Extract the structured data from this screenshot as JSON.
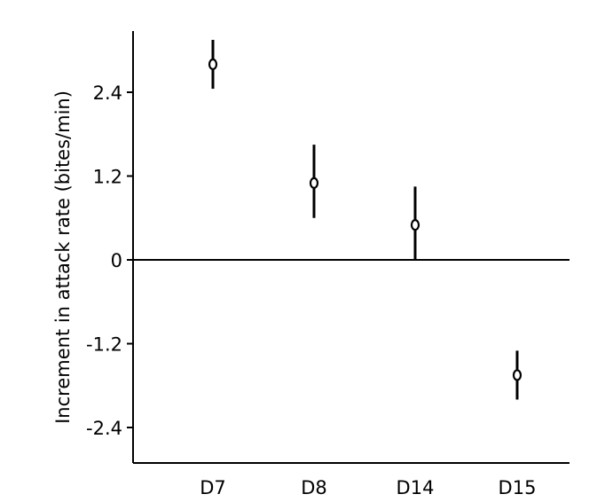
{
  "chart_data": {
    "type": "scatter",
    "title": "",
    "xlabel": "",
    "ylabel": "Increment in attack rate (bites/min)",
    "categories": [
      "D7",
      "D8",
      "D14",
      "D15"
    ],
    "values": [
      2.8,
      1.1,
      0.5,
      -1.65
    ],
    "error_low": [
      2.45,
      0.6,
      0.0,
      -2.0
    ],
    "error_high": [
      3.15,
      1.65,
      1.05,
      -1.3
    ],
    "ylim": [
      -3.0,
      3.4
    ],
    "yticks": [
      {
        "value": 2.4,
        "label": "2.4"
      },
      {
        "value": 1.2,
        "label": "1.2"
      },
      {
        "value": 0,
        "label": "0"
      },
      {
        "value": -1.2,
        "label": "-1.2"
      },
      {
        "value": -2.4,
        "label": "-2.4"
      }
    ],
    "zero_line": true,
    "grid": false,
    "legend": "none",
    "colors": {
      "marks": "#000000",
      "background": "#ffffff"
    }
  }
}
